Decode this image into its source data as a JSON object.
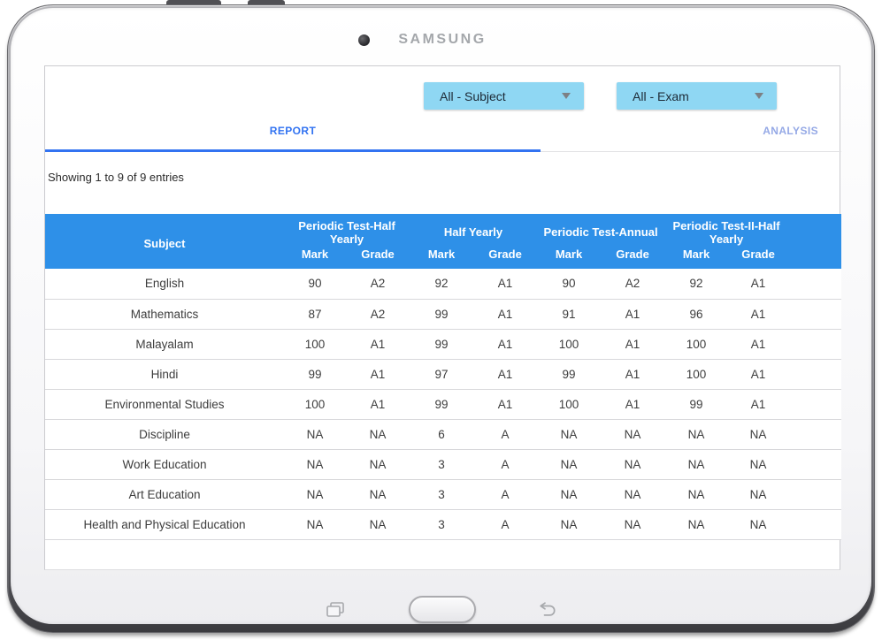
{
  "device": {
    "brand": "SAMSUNG",
    "icons": {
      "camera": "dot",
      "recent_apps": "overlapping-rectangles",
      "home": "pill-button",
      "back": "u-turn-left-arrow",
      "dropdown_caret": "down-triangle"
    }
  },
  "filters": {
    "subject": {
      "value": "All - Subject"
    },
    "exam": {
      "value": "All - Exam"
    }
  },
  "tabs": {
    "report": "REPORT",
    "analysis": "ANALYSIS"
  },
  "status_text": "Showing 1 to 9 of 9 entries",
  "report_table": {
    "subject_header": "Subject",
    "groups": [
      "Periodic Test-Half Yearly",
      "Half Yearly",
      "Periodic Test-Annual",
      "Periodic Test-II-Half Yearly"
    ],
    "sub_headers": {
      "mark": "Mark",
      "grade": "Grade"
    },
    "rows": [
      {
        "subject": "English",
        "values": [
          "90",
          "A2",
          "92",
          "A1",
          "90",
          "A2",
          "92",
          "A1"
        ]
      },
      {
        "subject": "Mathematics",
        "values": [
          "87",
          "A2",
          "99",
          "A1",
          "91",
          "A1",
          "96",
          "A1"
        ]
      },
      {
        "subject": "Malayalam",
        "values": [
          "100",
          "A1",
          "99",
          "A1",
          "100",
          "A1",
          "100",
          "A1"
        ]
      },
      {
        "subject": "Hindi",
        "values": [
          "99",
          "A1",
          "97",
          "A1",
          "99",
          "A1",
          "100",
          "A1"
        ]
      },
      {
        "subject": "Environmental Studies",
        "values": [
          "100",
          "A1",
          "99",
          "A1",
          "100",
          "A1",
          "99",
          "A1"
        ]
      },
      {
        "subject": "Discipline",
        "values": [
          "NA",
          "NA",
          "6",
          "A",
          "NA",
          "NA",
          "NA",
          "NA"
        ]
      },
      {
        "subject": "Work Education",
        "values": [
          "NA",
          "NA",
          "3",
          "A",
          "NA",
          "NA",
          "NA",
          "NA"
        ]
      },
      {
        "subject": "Art Education",
        "values": [
          "NA",
          "NA",
          "3",
          "A",
          "NA",
          "NA",
          "NA",
          "NA"
        ]
      },
      {
        "subject": "Health and Physical Education",
        "values": [
          "NA",
          "NA",
          "3",
          "A",
          "NA",
          "NA",
          "NA",
          "NA"
        ]
      }
    ]
  },
  "colors": {
    "table_header_blue": "#2e90e8",
    "dropdown_blue": "#8fd7f3",
    "active_tab_blue": "#3273f1",
    "inactive_tab_blue": "#95a9e6"
  }
}
